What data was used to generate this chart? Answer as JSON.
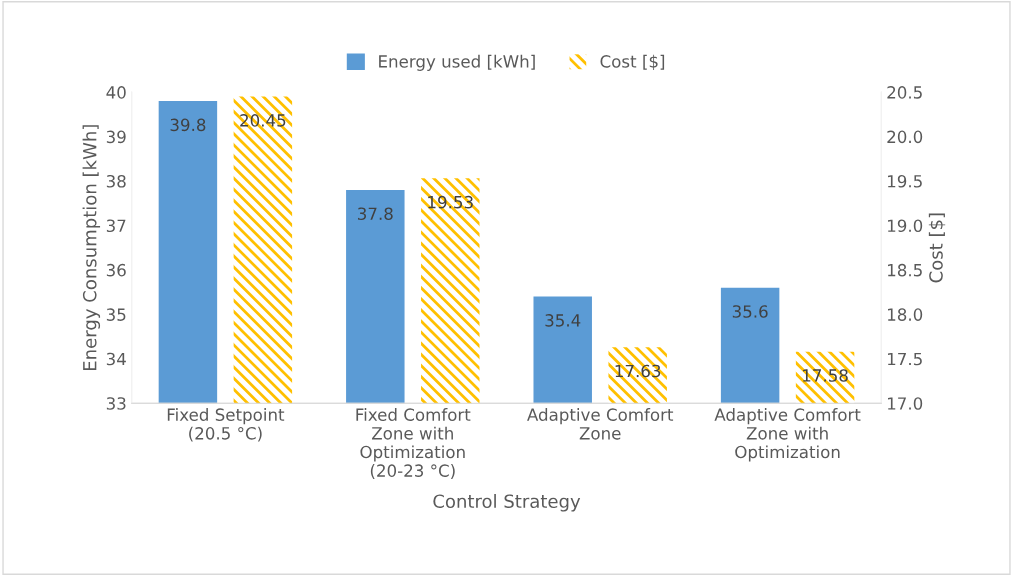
{
  "chart_data": {
    "type": "bar",
    "xlabel": "Control Strategy",
    "ylabel": "Energy Consumption [kWh]",
    "y2label": "Cost [$]",
    "categories": [
      "Fixed Setpoint\n(20.5 °C)",
      "Fixed Comfort\nZone with\nOptimization\n(20-23 °C)",
      "Adaptive Comfort\nZone",
      "Adaptive Comfort\nZone with\nOptimization"
    ],
    "series": [
      {
        "name": "Energy used [kWh]",
        "color": "#5b9bd5",
        "values": [
          39.8,
          37.8,
          35.4,
          35.6
        ]
      },
      {
        "name": "Cost [$]",
        "color": "#ffc000",
        "axis": "y2",
        "values": [
          20.45,
          19.53,
          17.63,
          17.58
        ]
      }
    ],
    "ylim": [
      33,
      40
    ],
    "yticks": [
      33,
      34,
      35,
      36,
      37,
      38,
      39,
      40
    ],
    "y2lim": [
      17.0,
      20.5
    ],
    "y2ticks": [
      {
        "value": 17,
        "label": "17.0"
      },
      {
        "value": 17.5,
        "label": "17.5"
      },
      {
        "value": 18,
        "label": "18.0"
      },
      {
        "value": 18.5,
        "label": "18.5"
      },
      {
        "value": 19,
        "label": "19.0"
      },
      {
        "value": 19.5,
        "label": "19.5"
      },
      {
        "value": 20,
        "label": "20.0"
      },
      {
        "value": 20.5,
        "label": "20.5"
      }
    ],
    "data_labels": true,
    "legend": "top",
    "grid": false
  }
}
